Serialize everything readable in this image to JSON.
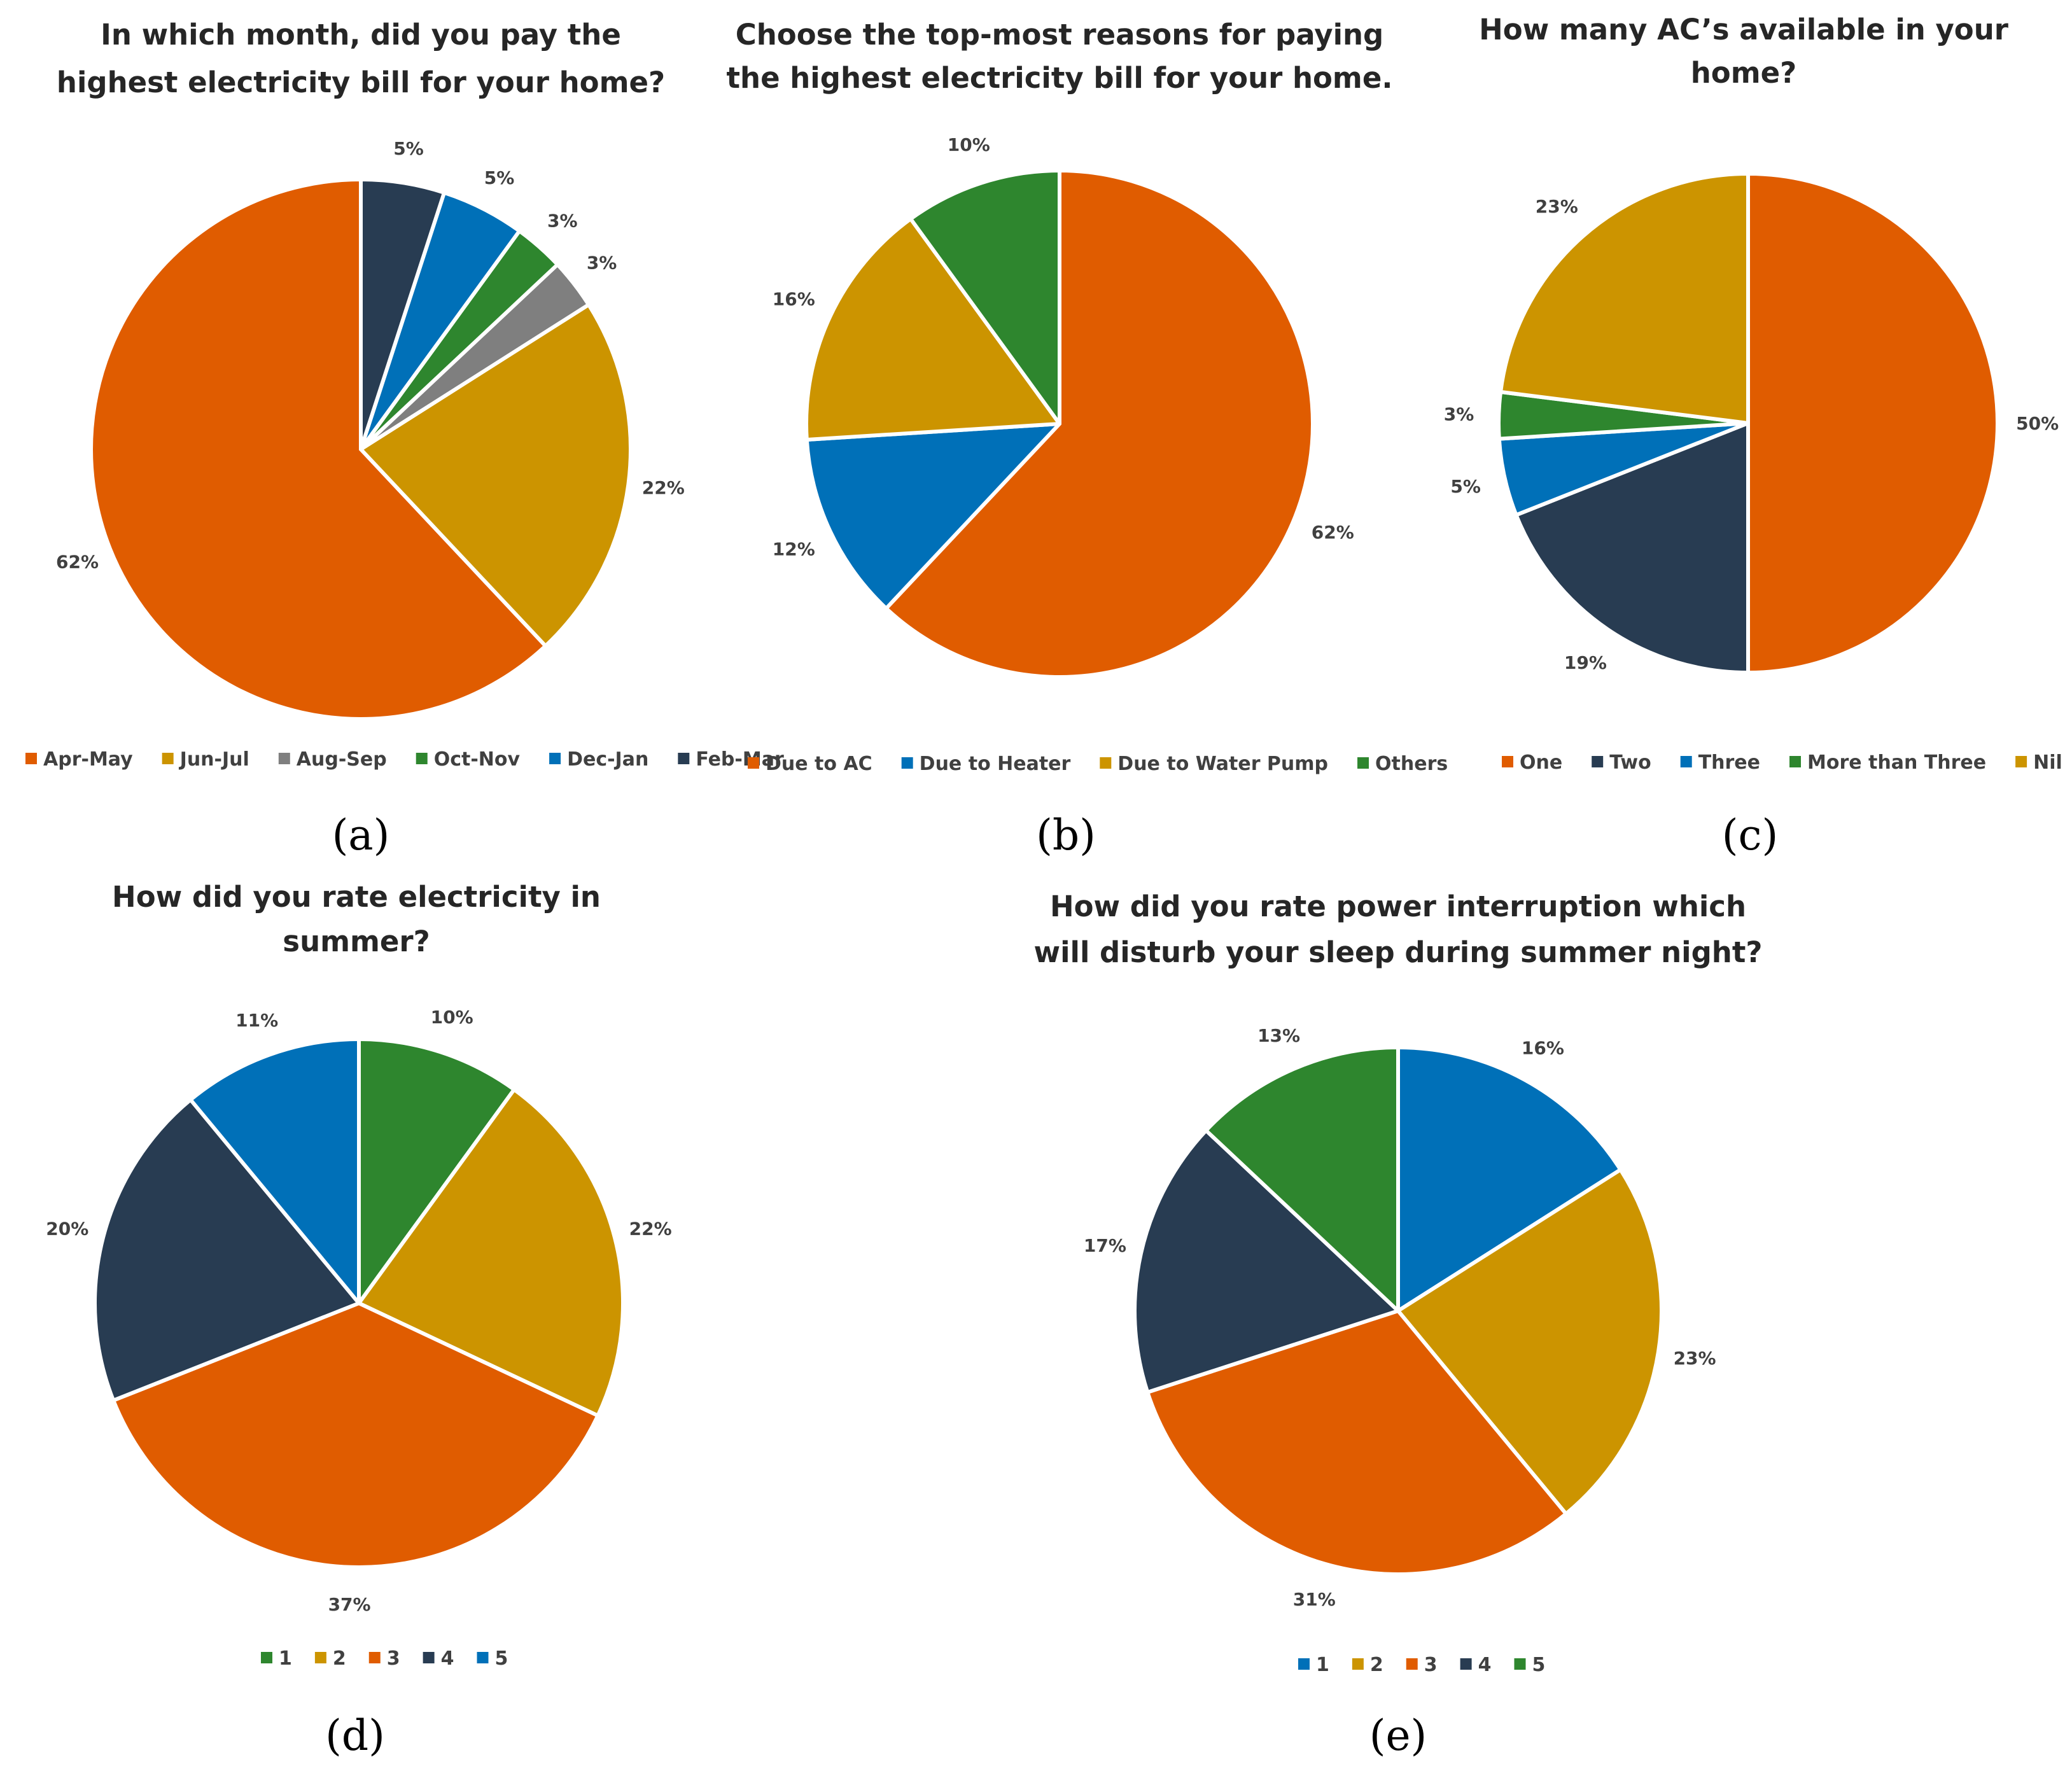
{
  "chart_data": [
    {
      "type": "pie",
      "panel": "(a)",
      "title": [
        "In which month, did you pay the",
        "highest electricity bill for your home?"
      ],
      "categories": [
        "Apr-May",
        "Jun-Jul",
        "Aug-Sep",
        "Oct-Nov",
        "Dec-Jan",
        "Feb-Mar"
      ],
      "values": [
        62,
        22,
        3,
        3,
        5,
        5
      ],
      "labels": [
        "62%",
        "22%",
        "3%",
        "3%",
        "5%",
        "5%"
      ],
      "colors": [
        "#E05C00",
        "#CC9400",
        "#7F7F7F",
        "#2E862E",
        "#0070B8",
        "#283C52"
      ],
      "slice_order": "counterclockwise from 12 o'clock",
      "legend_position": "bottom"
    },
    {
      "type": "pie",
      "panel": "(b)",
      "title": [
        "Choose the top-most reasons for paying",
        "the highest electricity bill for your home."
      ],
      "categories": [
        "Due to AC",
        "Due to Heater",
        "Due to Water Pump",
        "Others"
      ],
      "values": [
        62,
        12,
        16,
        10
      ],
      "labels": [
        "62%",
        "12%",
        "16%",
        "10%"
      ],
      "colors": [
        "#E05C00",
        "#0070B8",
        "#CC9400",
        "#2E862E"
      ],
      "slice_order": "clockwise from 12 o'clock",
      "legend_position": "bottom"
    },
    {
      "type": "pie",
      "panel": "(c)",
      "title": [
        "How many AC’s available in your",
        "home?"
      ],
      "categories": [
        "One",
        "Two",
        "Three",
        "More than Three",
        "Nil"
      ],
      "values": [
        50,
        19,
        5,
        3,
        23
      ],
      "labels": [
        "50%",
        "19%",
        "5%",
        "3%",
        "23%"
      ],
      "colors": [
        "#E05C00",
        "#283C52",
        "#0070B8",
        "#2E862E",
        "#CC9400"
      ],
      "slice_order": "clockwise from 12 o'clock",
      "legend_position": "bottom"
    },
    {
      "type": "pie",
      "panel": "(d)",
      "title": [
        "How did you rate electricity in",
        "summer?"
      ],
      "categories": [
        "1",
        "2",
        "3",
        "4",
        "5"
      ],
      "values": [
        10,
        22,
        37,
        20,
        11
      ],
      "labels": [
        "10%",
        "22%",
        "37%",
        "20%",
        "11%"
      ],
      "colors": [
        "#2E862E",
        "#CC9400",
        "#E05C00",
        "#283C52",
        "#0070B8"
      ],
      "slice_order": "clockwise from 12 o'clock",
      "legend_position": "bottom"
    },
    {
      "type": "pie",
      "panel": "(e)",
      "title": [
        "How did you rate power interruption which",
        "will disturb your sleep during summer night?"
      ],
      "categories": [
        "1",
        "2",
        "3",
        "4",
        "5"
      ],
      "values": [
        16,
        23,
        31,
        17,
        13
      ],
      "labels": [
        "16%",
        "23%",
        "31%",
        "17%",
        "13%"
      ],
      "colors": [
        "#0070B8",
        "#CC9400",
        "#E05C00",
        "#283C52",
        "#2E862E"
      ],
      "slice_order": "clockwise from 12 o'clock",
      "legend_position": "bottom"
    }
  ]
}
